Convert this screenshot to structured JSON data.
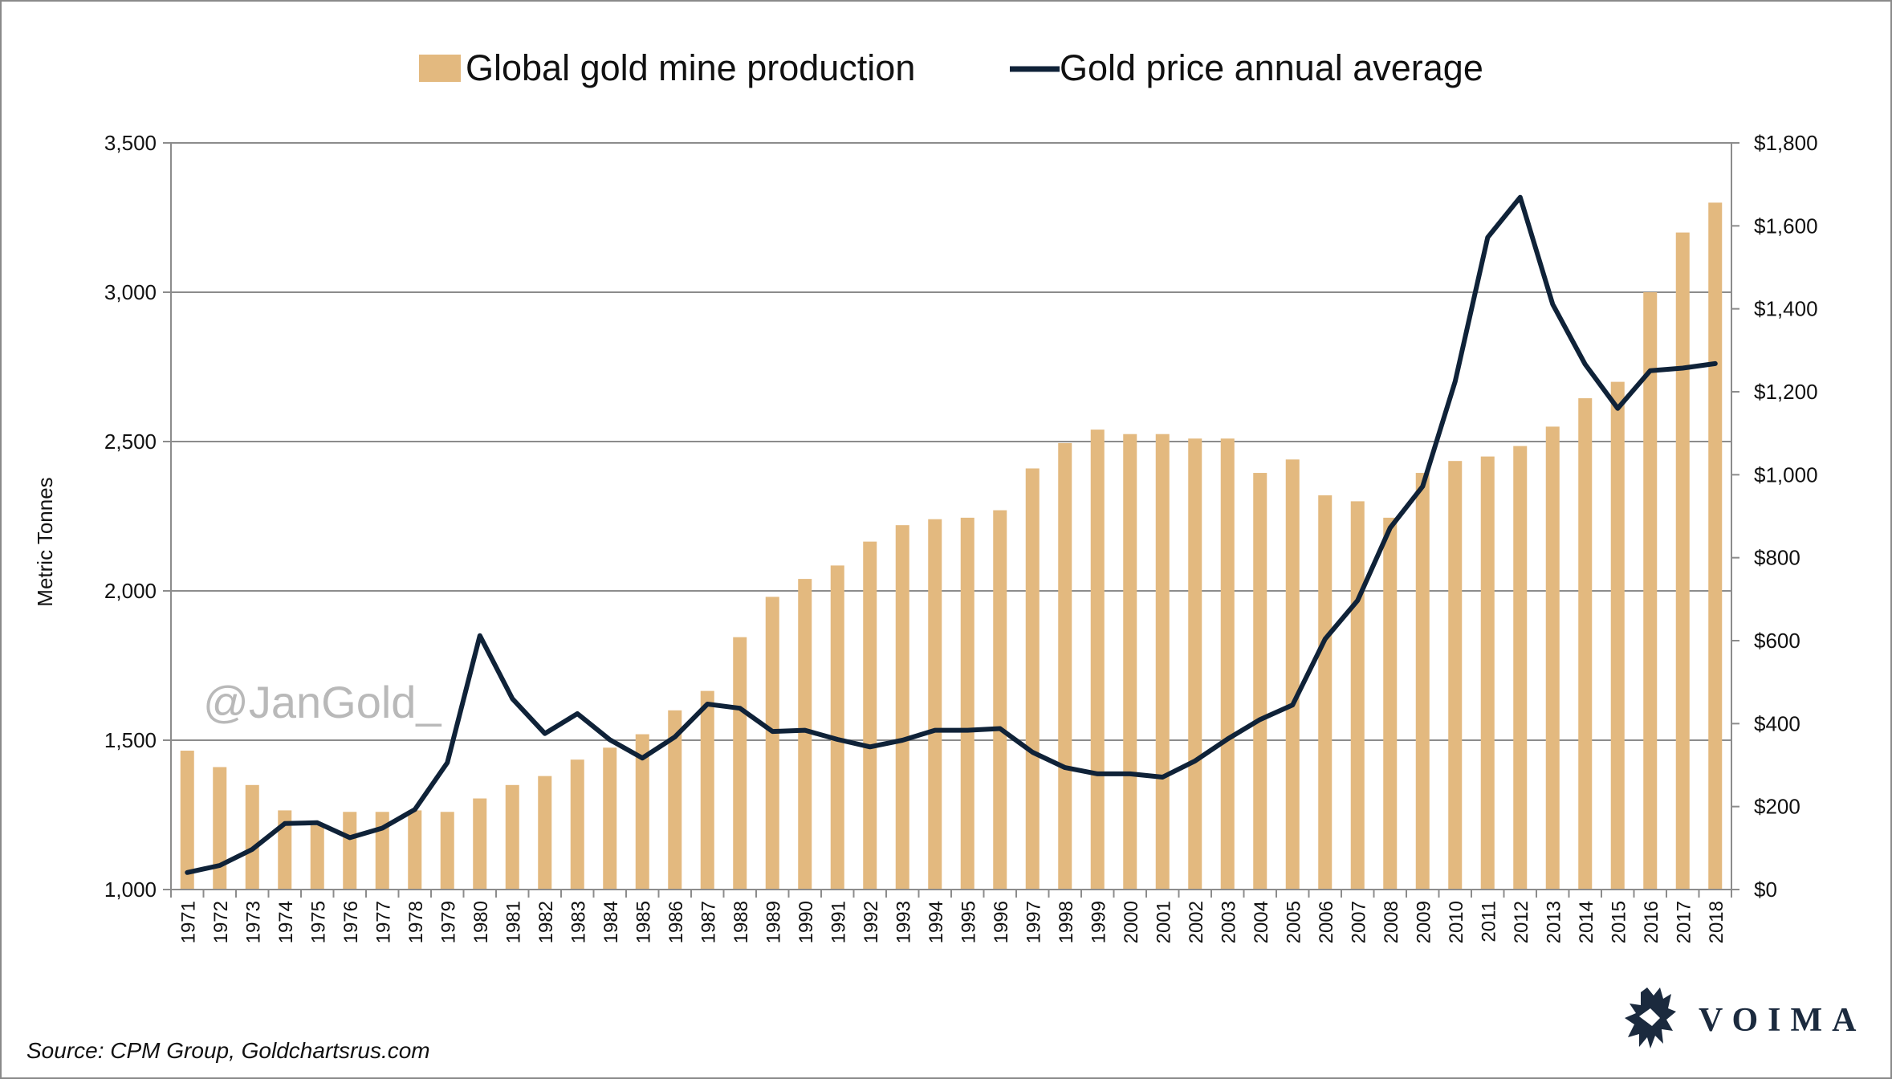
{
  "chart_data": {
    "type": "bar",
    "title": "",
    "xlabel": "",
    "ylabel": "Metric Tonnes",
    "ylim": [
      1000,
      3500
    ],
    "yticks": [
      "1,000",
      "1,500",
      "2,000",
      "2,500",
      "3,000",
      "3,500"
    ],
    "y2lim": [
      0,
      1800
    ],
    "y2ticks": [
      "$0",
      "$200",
      "$400",
      "$600",
      "$800",
      "$1,000",
      "$1,200",
      "$1,400",
      "$1,600",
      "$1,800"
    ],
    "grid": "horizontal",
    "legend_position": "top-center",
    "categories": [
      "1971",
      "1972",
      "1973",
      "1974",
      "1975",
      "1976",
      "1977",
      "1978",
      "1979",
      "1980",
      "1981",
      "1982",
      "1983",
      "1984",
      "1985",
      "1986",
      "1987",
      "1988",
      "1989",
      "1990",
      "1991",
      "1992",
      "1993",
      "1994",
      "1995",
      "1996",
      "1997",
      "1998",
      "1999",
      "2000",
      "2001",
      "2002",
      "2003",
      "2004",
      "2005",
      "2006",
      "2007",
      "2008",
      "2009",
      "2010",
      "2011",
      "2012",
      "2013",
      "2014",
      "2015",
      "2016",
      "2017",
      "2018"
    ],
    "series": [
      {
        "name": "Global gold mine production",
        "type": "bar",
        "axis": "left",
        "color": "#e3b97f",
        "values": [
          1465,
          1410,
          1350,
          1265,
          1215,
          1260,
          1260,
          1265,
          1260,
          1305,
          1350,
          1380,
          1435,
          1475,
          1520,
          1600,
          1665,
          1845,
          1980,
          2040,
          2085,
          2165,
          2220,
          2240,
          2245,
          2270,
          2410,
          2495,
          2540,
          2525,
          2525,
          2510,
          2510,
          2395,
          2440,
          2320,
          2300,
          2245,
          2395,
          2435,
          2450,
          2485,
          2550,
          2645,
          2700,
          3000,
          3200,
          3300
        ]
      },
      {
        "name": "Gold price annual average",
        "type": "line",
        "axis": "right",
        "color": "#0f2238",
        "values": [
          41,
          58,
          97,
          159,
          161,
          125,
          148,
          193,
          306,
          612,
          460,
          376,
          424,
          361,
          317,
          368,
          447,
          437,
          381,
          384,
          362,
          344,
          360,
          384,
          384,
          388,
          331,
          294,
          279,
          279,
          271,
          310,
          363,
          410,
          445,
          604,
          697,
          872,
          972,
          1225,
          1572,
          1669,
          1411,
          1266,
          1160,
          1251,
          1257,
          1268
        ]
      }
    ]
  },
  "watermark": "@JanGold_",
  "source": "Source: CPM Group, Goldchartsrus.com",
  "brand": {
    "name": "VOIMA",
    "logo_icon": "lion-crest-icon"
  }
}
